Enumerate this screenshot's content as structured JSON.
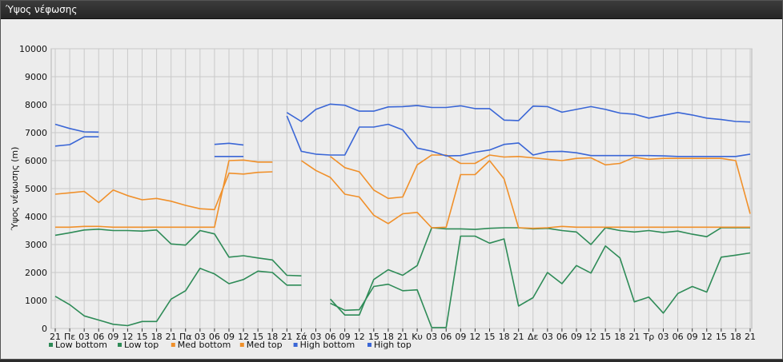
{
  "window": {
    "title": "Ύψος νέφωσης"
  },
  "colors": {
    "low_bottom": "#2e8b57",
    "low_top": "#2e8b57",
    "med_bottom": "#f0902a",
    "med_top": "#f0902a",
    "high_bottom": "#3a66d6",
    "high_top": "#3a66d6",
    "plot_bg": "#ededed",
    "grid": "#c9c9c9"
  },
  "chart_data": {
    "type": "line",
    "title": "",
    "xlabel": "",
    "ylabel": "Ύψος νέφωσης (m)",
    "ylim": [
      0,
      10000
    ],
    "yticks": [
      0,
      1000,
      2000,
      3000,
      4000,
      5000,
      6000,
      7000,
      8000,
      9000,
      10000
    ],
    "grid": true,
    "legend_position": "bottom-left",
    "categories": [
      "21",
      "Πε",
      "03",
      "06",
      "09",
      "12",
      "15",
      "18",
      "21",
      "Πα",
      "03",
      "06",
      "09",
      "12",
      "15",
      "18",
      "21",
      "Σά",
      "03",
      "06",
      "09",
      "12",
      "15",
      "18",
      "21",
      "Κυ",
      "03",
      "06",
      "09",
      "12",
      "15",
      "18",
      "21",
      "Δε",
      "03",
      "06",
      "09",
      "12",
      "15",
      "18",
      "21",
      "Τρ",
      "03",
      "06",
      "09",
      "12",
      "15",
      "18",
      "21"
    ],
    "series": [
      {
        "name": "Low bottom",
        "color_key": "low_bottom",
        "values": [
          1150,
          850,
          450,
          300,
          150,
          100,
          250,
          250,
          1050,
          1350,
          2150,
          1950,
          1600,
          1750,
          2050,
          2000,
          1550,
          1550,
          null,
          900,
          650,
          670,
          1500,
          1580,
          1350,
          1380,
          30,
          30,
          3300,
          3300,
          3050,
          3200,
          800,
          1100,
          2000,
          1600,
          2250,
          1980,
          2950,
          2520,
          950,
          1120,
          550,
          1250,
          1500,
          1300,
          2550,
          2620,
          2700
        ]
      },
      {
        "name": "Low top",
        "color_key": "low_top",
        "values": [
          3330,
          3420,
          3520,
          3550,
          3500,
          3500,
          3480,
          3520,
          3020,
          2980,
          3500,
          3380,
          2550,
          2600,
          2520,
          2450,
          1900,
          1880,
          null,
          1050,
          480,
          480,
          1750,
          2100,
          1900,
          2250,
          3600,
          3560,
          3560,
          3540,
          3580,
          3600,
          3600,
          3560,
          3580,
          3500,
          3450,
          3000,
          3600,
          3500,
          3450,
          3500,
          3430,
          3480,
          3370,
          3280,
          3600,
          3600,
          3600
        ]
      },
      {
        "name": "Med bottom",
        "color_key": "med_bottom",
        "values": [
          3620,
          3620,
          3650,
          3650,
          3620,
          3620,
          3620,
          3620,
          3620,
          3620,
          3620,
          3620,
          6000,
          6020,
          5950,
          5950,
          null,
          6000,
          5650,
          5400,
          4800,
          4700,
          4050,
          3750,
          4100,
          4150,
          3600,
          3620,
          5500,
          5500,
          6000,
          5350,
          3600,
          3580,
          3600,
          3650,
          3620,
          3620,
          3620,
          3620,
          3620,
          3620,
          3620,
          3620,
          3620,
          3620,
          3620,
          3620,
          3620
        ]
      },
      {
        "name": "Med top",
        "color_key": "med_top",
        "values": [
          4800,
          4850,
          4900,
          4500,
          4950,
          4750,
          4600,
          4650,
          4550,
          4400,
          4280,
          4250,
          5550,
          5520,
          5580,
          5600,
          null,
          null,
          null,
          6150,
          5750,
          5600,
          4950,
          4650,
          4700,
          5850,
          6200,
          6200,
          5900,
          5900,
          6200,
          6130,
          6150,
          6100,
          6050,
          6000,
          6080,
          6100,
          5850,
          5900,
          6120,
          6050,
          6080,
          6080,
          6080,
          6080,
          6080,
          6000,
          4100
        ]
      },
      {
        "name": "High bottom",
        "color_key": "high_bottom",
        "values": [
          6520,
          6570,
          6850,
          6850,
          null,
          null,
          null,
          null,
          null,
          null,
          null,
          6150,
          6150,
          6150,
          null,
          null,
          7600,
          6330,
          6230,
          6200,
          6200,
          7200,
          7200,
          7300,
          7100,
          6450,
          6340,
          6170,
          6180,
          6300,
          6380,
          6580,
          6630,
          6200,
          6320,
          6330,
          6280,
          6180,
          6180,
          6180,
          6180,
          6180,
          6170,
          6150,
          6150,
          6150,
          6150,
          6150,
          6230
        ]
      },
      {
        "name": "High top",
        "color_key": "high_top",
        "values": [
          7300,
          7150,
          7030,
          7020,
          null,
          null,
          null,
          null,
          null,
          null,
          null,
          6580,
          6620,
          6560,
          null,
          null,
          7720,
          7400,
          7830,
          8020,
          7980,
          7770,
          7770,
          7920,
          7930,
          7970,
          7900,
          7900,
          7960,
          7860,
          7860,
          7450,
          7430,
          7950,
          7930,
          7730,
          7830,
          7930,
          7830,
          7700,
          7660,
          7520,
          7620,
          7720,
          7630,
          7520,
          7470,
          7400,
          7380
        ]
      }
    ]
  }
}
